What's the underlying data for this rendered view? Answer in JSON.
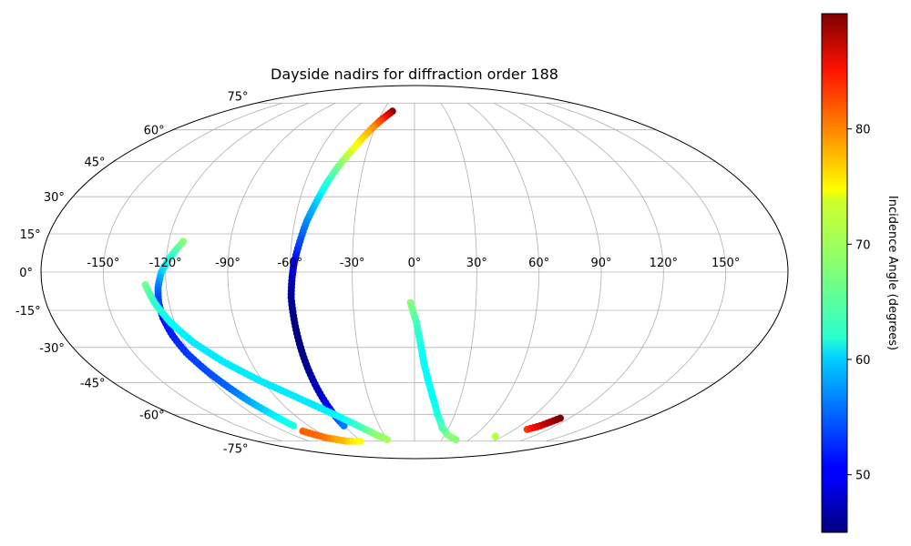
{
  "chart_data": {
    "type": "scatter",
    "projection": "mollweide",
    "title": "Dayside nadirs for diffraction order 188",
    "lon_ticks": [
      "-150°",
      "-120°",
      "-90°",
      "-60°",
      "-30°",
      "0°",
      "30°",
      "60°",
      "90°",
      "120°",
      "150°"
    ],
    "lat_ticks": [
      "75°",
      "60°",
      "45°",
      "30°",
      "15°",
      "0°",
      "-15°",
      "-30°",
      "-45°",
      "-60°",
      "-75°"
    ],
    "grid": true,
    "colormap": "jet",
    "colorbar": {
      "label": "Incidence Angle (degrees)",
      "range": [
        45,
        90
      ],
      "ticks": [
        "50",
        "60",
        "70",
        "80"
      ]
    },
    "series": [
      {
        "points": [
          [
            -21,
            70,
            90
          ],
          [
            -24,
            68,
            86
          ],
          [
            -28,
            65,
            82
          ],
          [
            -32,
            61,
            78
          ],
          [
            -36,
            56,
            75
          ],
          [
            -40,
            50,
            72
          ],
          [
            -44,
            44,
            68
          ],
          [
            -48,
            36,
            64
          ],
          [
            -51,
            28,
            60
          ],
          [
            -54,
            20,
            57
          ],
          [
            -56,
            12,
            54
          ],
          [
            -58,
            4,
            51
          ],
          [
            -59,
            -2,
            48
          ],
          [
            -60,
            -10,
            46
          ],
          [
            -60,
            -20,
            45
          ],
          [
            -60,
            -30,
            45
          ],
          [
            -60,
            -40,
            46
          ],
          [
            -60,
            -50,
            48
          ],
          [
            -60,
            -60,
            52
          ],
          [
            -60,
            -66,
            56
          ]
        ]
      },
      {
        "points": [
          [
            -113,
            12,
            68
          ],
          [
            -118,
            6,
            64
          ],
          [
            -122,
            0,
            60
          ],
          [
            -124,
            -6,
            56
          ],
          [
            -125,
            -12,
            53
          ],
          [
            -125,
            -18,
            51
          ],
          [
            -124,
            -25,
            52
          ],
          [
            -122,
            -32,
            53
          ],
          [
            -118,
            -40,
            54
          ],
          [
            -114,
            -47,
            55
          ],
          [
            -110,
            -54,
            58
          ],
          [
            -106,
            -60,
            61
          ],
          [
            -103,
            -66,
            63
          ]
        ]
      },
      {
        "points": [
          [
            -130,
            -5,
            67
          ],
          [
            -127,
            -12,
            64
          ],
          [
            -122,
            -20,
            62
          ],
          [
            -115,
            -28,
            61
          ],
          [
            -105,
            -36,
            61
          ],
          [
            -92,
            -44,
            61
          ],
          [
            -80,
            -50,
            61
          ],
          [
            -68,
            -56,
            61
          ],
          [
            -56,
            -62,
            62
          ],
          [
            -46,
            -67,
            65
          ],
          [
            -38,
            -71,
            68
          ],
          [
            -30,
            -74,
            69
          ]
        ]
      },
      {
        "points": [
          [
            -103,
            -69,
            80
          ],
          [
            -98,
            -71,
            80
          ],
          [
            -92,
            -73,
            79
          ],
          [
            -85,
            -74,
            77
          ],
          [
            -78,
            -75,
            76
          ],
          [
            -70,
            -75,
            74
          ],
          [
            -62,
            -75,
            73
          ]
        ]
      },
      {
        "points": [
          [
            -2,
            -12,
            68
          ],
          [
            1,
            -20,
            65
          ],
          [
            3,
            -28,
            63
          ],
          [
            5,
            -36,
            62
          ],
          [
            8,
            -44,
            62
          ],
          [
            12,
            -52,
            62
          ],
          [
            17,
            -60,
            63
          ],
          [
            24,
            -67,
            65
          ],
          [
            32,
            -71,
            67
          ],
          [
            40,
            -73,
            68
          ],
          [
            45,
            -74,
            68
          ]
        ]
      },
      {
        "points": [
          [
            101,
            -68,
            82
          ],
          [
            104,
            -67,
            84
          ],
          [
            107,
            -66,
            86
          ],
          [
            110,
            -64,
            88
          ],
          [
            113,
            -62,
            90
          ]
        ]
      },
      {
        "points": [
          [
            82,
            -72,
            70
          ]
        ]
      }
    ]
  }
}
